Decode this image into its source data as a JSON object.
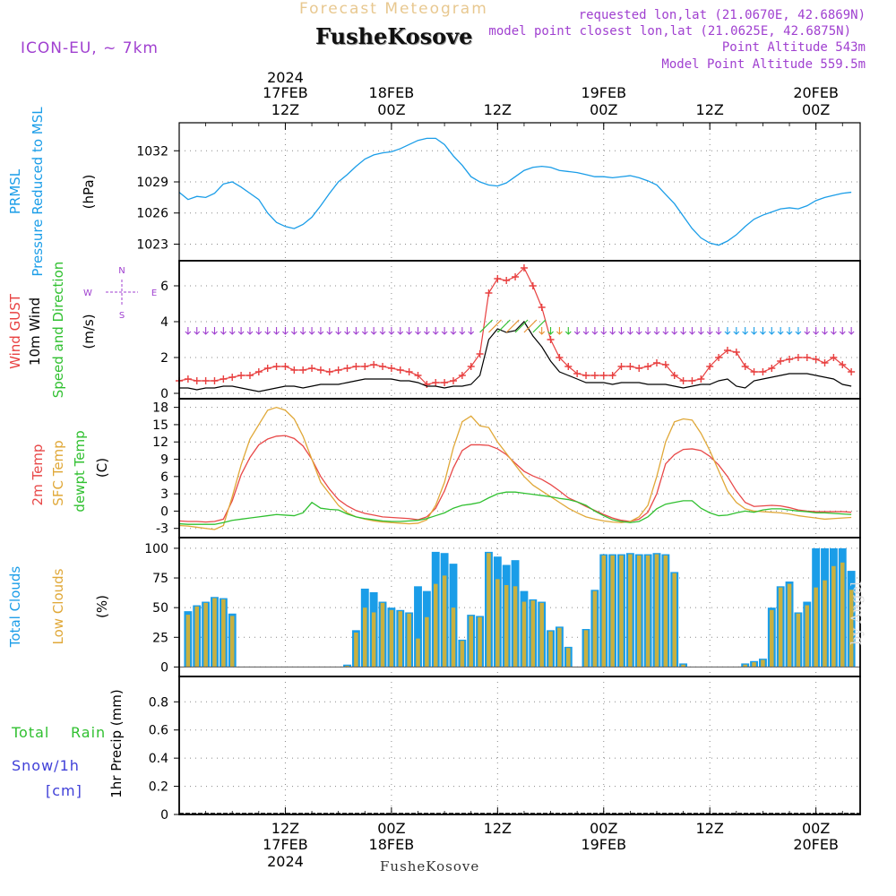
{
  "header": {
    "title": "Forecast Meteogram",
    "place": "FusheKosove",
    "model": "ICON-EU, ~ 7km",
    "requested": "requested lon,lat (21.0670E, 42.6869N)",
    "closest": "model point closest lon,lat (21.0625E, 42.6875N)",
    "point_alt": "Point Altitude 543m",
    "model_alt": "Model Point Altitude 559.5m",
    "footer_place": "FusheKosove",
    "watermark": "by Angel"
  },
  "colors": {
    "pressure": "#1a9de8",
    "gust": "#e84040",
    "wind": "#000000",
    "temp2m": "#e84848",
    "sfc": "#e0a838",
    "dewpt": "#30c030",
    "total_clouds": "#1a9de8",
    "low_clouds": "#c8b040",
    "purple": "#a040d0",
    "rain": "#30c030",
    "snow": "#4040d8"
  },
  "axes": {
    "top_year": "2024",
    "top_ticks": [
      {
        "t": 12,
        "day": "17FEB",
        "hr": "12Z"
      },
      {
        "t": 24,
        "day": "18FEB",
        "hr": "00Z"
      },
      {
        "t": 36,
        "day": "",
        "hr": "12Z"
      },
      {
        "t": 48,
        "day": "19FEB",
        "hr": "00Z"
      },
      {
        "t": 60,
        "day": "",
        "hr": "12Z"
      },
      {
        "t": 72,
        "day": "20FEB",
        "hr": "00Z"
      }
    ],
    "bottom_ticks": [
      {
        "t": 12,
        "hr": "12Z",
        "day": "17FEB",
        "year": "2024"
      },
      {
        "t": 24,
        "hr": "00Z",
        "day": "18FEB",
        "year": ""
      },
      {
        "t": 36,
        "hr": "12Z",
        "day": "",
        "year": ""
      },
      {
        "t": 48,
        "hr": "00Z",
        "day": "19FEB",
        "year": ""
      },
      {
        "t": 60,
        "hr": "12Z",
        "day": "",
        "year": ""
      },
      {
        "t": 72,
        "hr": "00Z",
        "day": "20FEB",
        "year": ""
      }
    ],
    "t_range": [
      0,
      77
    ]
  },
  "panels": {
    "pressure": {
      "label1": "PRMSL",
      "label2": "Pressure Reduced to MSL",
      "unit": "(hPa)",
      "ticks": [
        "1023",
        "1026",
        "1029",
        "1032"
      ]
    },
    "wind": {
      "label_gust": "Wind GUST",
      "label_wind": "10m Wind",
      "label_dir": "Speed and Direction",
      "unit": "(m/s)",
      "ticks": [
        "0",
        "2",
        "4",
        "6"
      ],
      "compass": {
        "n": "N",
        "s": "S",
        "w": "W",
        "e": "E"
      }
    },
    "temp": {
      "label_2m": "2m Temp",
      "label_sfc": "SFC Temp",
      "label_dew": "dewpt Temp",
      "unit": "(C)",
      "ticks": [
        "-3",
        "0",
        "3",
        "6",
        "9",
        "12",
        "15",
        "18"
      ]
    },
    "clouds": {
      "label_total": "Total Clouds",
      "label_low": "Low Clouds",
      "unit": "(%)",
      "ticks": [
        "0",
        "25",
        "50",
        "75",
        "100"
      ]
    },
    "precip": {
      "label_total": "Total",
      "label_rain": "Rain",
      "label_snow": "Snow/1h",
      "label_cm": "[cm]",
      "unit": "1hr Precip (mm)",
      "ticks": [
        "0",
        "0.2",
        "0.4",
        "0.6",
        "0.8"
      ]
    }
  },
  "chart_data": [
    {
      "type": "line",
      "title": "PRMSL Pressure Reduced to MSL",
      "ylabel": "hPa",
      "ylim": [
        1021.4,
        1034.7
      ],
      "x": [
        0,
        1,
        2,
        3,
        4,
        5,
        6,
        7,
        8,
        9,
        10,
        11,
        12,
        13,
        14,
        15,
        16,
        17,
        18,
        19,
        20,
        21,
        22,
        23,
        24,
        25,
        26,
        27,
        28,
        29,
        30,
        31,
        32,
        33,
        34,
        35,
        36,
        37,
        38,
        39,
        40,
        41,
        42,
        43,
        44,
        45,
        46,
        47,
        48,
        49,
        50,
        51,
        52,
        53,
        54,
        55,
        56,
        57,
        58,
        59,
        60,
        61,
        62,
        63,
        64,
        65,
        66,
        67,
        68,
        69,
        70,
        71,
        72,
        73,
        74,
        75,
        76
      ],
      "values": [
        1028.0,
        1027.3,
        1027.6,
        1027.5,
        1027.9,
        1028.8,
        1029.0,
        1028.5,
        1027.9,
        1027.3,
        1026.0,
        1025.1,
        1024.7,
        1024.5,
        1024.9,
        1025.6,
        1026.7,
        1027.9,
        1029.0,
        1029.7,
        1030.5,
        1031.2,
        1031.6,
        1031.8,
        1031.9,
        1032.2,
        1032.6,
        1033.0,
        1033.2,
        1033.2,
        1032.6,
        1031.5,
        1030.6,
        1029.5,
        1029.0,
        1028.7,
        1028.6,
        1028.9,
        1029.5,
        1030.1,
        1030.4,
        1030.5,
        1030.4,
        1030.1,
        1030.0,
        1029.9,
        1029.7,
        1029.5,
        1029.5,
        1029.4,
        1029.5,
        1029.6,
        1029.4,
        1029.1,
        1028.7,
        1027.8,
        1026.9,
        1025.7,
        1024.5,
        1023.6,
        1023.1,
        1022.9,
        1023.3,
        1023.9,
        1024.7,
        1025.4,
        1025.8,
        1026.1,
        1026.4,
        1026.5,
        1026.4,
        1026.7,
        1027.2,
        1027.5,
        1027.7,
        1027.9,
        1028.0
      ]
    },
    {
      "type": "line",
      "title": "Wind GUST / 10m Wind Speed",
      "ylabel": "m/s",
      "ylim": [
        -0.3,
        7.4
      ],
      "x": [
        0,
        1,
        2,
        3,
        4,
        5,
        6,
        7,
        8,
        9,
        10,
        11,
        12,
        13,
        14,
        15,
        16,
        17,
        18,
        19,
        20,
        21,
        22,
        23,
        24,
        25,
        26,
        27,
        28,
        29,
        30,
        31,
        32,
        33,
        34,
        35,
        36,
        37,
        38,
        39,
        40,
        41,
        42,
        43,
        44,
        45,
        46,
        47,
        48,
        49,
        50,
        51,
        52,
        53,
        54,
        55,
        56,
        57,
        58,
        59,
        60,
        61,
        62,
        63,
        64,
        65,
        66,
        67,
        68,
        69,
        70,
        71,
        72,
        73,
        74,
        75,
        76
      ],
      "series": [
        {
          "name": "Wind GUST",
          "values": [
            0.7,
            0.8,
            0.7,
            0.7,
            0.7,
            0.8,
            0.9,
            1.0,
            1.0,
            1.2,
            1.4,
            1.5,
            1.5,
            1.3,
            1.3,
            1.4,
            1.3,
            1.2,
            1.3,
            1.4,
            1.5,
            1.5,
            1.6,
            1.5,
            1.4,
            1.3,
            1.2,
            1.0,
            0.5,
            0.6,
            0.6,
            0.7,
            1.0,
            1.5,
            2.2,
            5.6,
            6.4,
            6.3,
            6.5,
            7.0,
            6.0,
            4.8,
            3.0,
            2.0,
            1.5,
            1.1,
            1.0,
            1.0,
            1.0,
            1.0,
            1.5,
            1.5,
            1.4,
            1.5,
            1.7,
            1.6,
            1.0,
            0.7,
            0.7,
            0.8,
            1.5,
            2.0,
            2.4,
            2.3,
            1.5,
            1.2,
            1.2,
            1.4,
            1.8,
            1.9,
            2.0,
            2.0,
            1.9,
            1.7,
            2.0,
            1.6,
            1.2
          ]
        },
        {
          "name": "10m Wind",
          "values": [
            0.3,
            0.3,
            0.2,
            0.3,
            0.3,
            0.4,
            0.4,
            0.3,
            0.2,
            0.1,
            0.2,
            0.3,
            0.4,
            0.4,
            0.3,
            0.4,
            0.5,
            0.5,
            0.5,
            0.6,
            0.7,
            0.8,
            0.8,
            0.8,
            0.8,
            0.7,
            0.7,
            0.6,
            0.4,
            0.4,
            0.3,
            0.4,
            0.4,
            0.5,
            1.0,
            3.0,
            3.6,
            3.4,
            3.5,
            4.0,
            3.2,
            2.6,
            1.8,
            1.2,
            1.0,
            0.8,
            0.6,
            0.6,
            0.6,
            0.5,
            0.6,
            0.6,
            0.6,
            0.5,
            0.5,
            0.5,
            0.4,
            0.3,
            0.4,
            0.5,
            0.5,
            0.7,
            0.8,
            0.4,
            0.3,
            0.7,
            0.8,
            0.9,
            1.0,
            1.1,
            1.1,
            1.1,
            1.0,
            0.9,
            0.8,
            0.5,
            0.4
          ]
        }
      ]
    },
    {
      "type": "line",
      "title": "2m Temp / SFC Temp / dewpt Temp",
      "ylabel": "C",
      "ylim": [
        -4.6,
        19.5
      ],
      "x": [
        0,
        1,
        2,
        3,
        4,
        5,
        6,
        7,
        8,
        9,
        10,
        11,
        12,
        13,
        14,
        15,
        16,
        17,
        18,
        19,
        20,
        21,
        22,
        23,
        24,
        25,
        26,
        27,
        28,
        29,
        30,
        31,
        32,
        33,
        34,
        35,
        36,
        37,
        38,
        39,
        40,
        41,
        42,
        43,
        44,
        45,
        46,
        47,
        48,
        49,
        50,
        51,
        52,
        53,
        54,
        55,
        56,
        57,
        58,
        59,
        60,
        61,
        62,
        63,
        64,
        65,
        66,
        67,
        68,
        69,
        70,
        71,
        72,
        73,
        74,
        75,
        76
      ],
      "series": [
        {
          "name": "2m Temp",
          "values": [
            -1.7,
            -1.8,
            -1.8,
            -1.9,
            -1.8,
            -1.4,
            1.8,
            6.3,
            9.3,
            11.5,
            12.5,
            13.0,
            13.1,
            12.6,
            11.3,
            9.0,
            6.0,
            3.8,
            2.0,
            0.9,
            0.1,
            -0.4,
            -0.7,
            -1.0,
            -1.1,
            -1.2,
            -1.3,
            -1.5,
            -1.0,
            0.5,
            3.5,
            7.5,
            10.5,
            11.5,
            11.5,
            11.4,
            10.8,
            9.8,
            8.3,
            6.9,
            6.1,
            5.5,
            4.6,
            3.5,
            2.3,
            1.6,
            0.8,
            0.1,
            -0.6,
            -1.2,
            -1.6,
            -1.8,
            -1.4,
            -0.2,
            3.0,
            8.2,
            9.8,
            10.7,
            10.8,
            10.5,
            9.5,
            8.0,
            6.0,
            3.5,
            1.5,
            0.8,
            0.9,
            1.0,
            0.9,
            0.6,
            0.2,
            0.0,
            -0.1,
            -0.1,
            -0.1,
            -0.1,
            -0.2
          ]
        },
        {
          "name": "SFC Temp",
          "values": [
            -2.5,
            -2.6,
            -2.8,
            -3.0,
            -3.2,
            -2.5,
            2.5,
            8.0,
            12.5,
            15.0,
            17.5,
            18.0,
            17.5,
            16.0,
            13.0,
            9.0,
            5.0,
            3.0,
            1.0,
            -0.3,
            -1.0,
            -1.4,
            -1.7,
            -1.9,
            -2.0,
            -2.1,
            -2.2,
            -2.1,
            -1.5,
            1.0,
            5.0,
            11.0,
            15.5,
            16.5,
            14.8,
            14.5,
            12.0,
            10.0,
            8.0,
            6.0,
            4.5,
            3.5,
            2.5,
            1.5,
            0.5,
            -0.3,
            -1.0,
            -1.4,
            -1.7,
            -1.9,
            -2.0,
            -1.8,
            -1.0,
            1.0,
            6.0,
            12.0,
            15.5,
            16.0,
            15.8,
            13.5,
            10.5,
            7.0,
            3.5,
            1.5,
            0.4,
            0.0,
            -0.1,
            -0.2,
            -0.3,
            -0.5,
            -0.8,
            -1.0,
            -1.2,
            -1.4,
            -1.3,
            -1.2,
            -1.1
          ]
        },
        {
          "name": "dewpt Temp",
          "values": [
            -2.2,
            -2.3,
            -2.3,
            -2.3,
            -2.3,
            -2.0,
            -1.6,
            -1.4,
            -1.2,
            -1.0,
            -0.8,
            -0.6,
            -0.7,
            -0.8,
            -0.3,
            1.5,
            0.5,
            0.3,
            0.2,
            -0.5,
            -1.0,
            -1.3,
            -1.5,
            -1.7,
            -1.8,
            -1.8,
            -1.7,
            -1.6,
            -1.3,
            -0.8,
            -0.3,
            0.5,
            1.0,
            1.2,
            1.5,
            2.3,
            3.0,
            3.3,
            3.3,
            3.1,
            2.9,
            2.7,
            2.5,
            2.2,
            2.0,
            1.6,
            1.0,
            0.0,
            -0.8,
            -1.5,
            -1.8,
            -2.0,
            -1.8,
            -1.0,
            0.4,
            1.2,
            1.5,
            1.8,
            1.8,
            0.5,
            -0.3,
            -0.8,
            -0.7,
            -0.3,
            0.0,
            -0.2,
            0.2,
            0.4,
            0.4,
            0.2,
            0.0,
            -0.1,
            -0.3,
            -0.3,
            -0.4,
            -0.5,
            -0.6
          ]
        }
      ]
    },
    {
      "type": "bar",
      "title": "Total Clouds / Low Clouds",
      "ylabel": "%",
      "ylim": [
        -8,
        109
      ],
      "x": [
        0,
        1,
        2,
        3,
        4,
        5,
        6,
        7,
        8,
        9,
        10,
        11,
        12,
        13,
        14,
        15,
        16,
        17,
        18,
        19,
        20,
        21,
        22,
        23,
        24,
        25,
        26,
        27,
        28,
        29,
        30,
        31,
        32,
        33,
        34,
        35,
        36,
        37,
        38,
        39,
        40,
        41,
        42,
        43,
        44,
        45,
        46,
        47,
        48,
        49,
        50,
        51,
        52,
        53,
        54,
        55,
        56,
        57,
        58,
        59,
        60,
        61,
        62,
        63,
        64,
        65,
        66,
        67,
        68,
        69,
        70,
        71,
        72,
        73,
        74,
        75,
        76
      ],
      "series": [
        {
          "name": "Total Clouds",
          "values": [
            0,
            47,
            52,
            55,
            59,
            58,
            45,
            0,
            0,
            0,
            0,
            0,
            0,
            0,
            0,
            0,
            0,
            0,
            0,
            2,
            31,
            66,
            63,
            55,
            50,
            48,
            46,
            68,
            64,
            97,
            96,
            87,
            23,
            44,
            43,
            97,
            93,
            86,
            90,
            64,
            57,
            55,
            31,
            34,
            17,
            0,
            32,
            65,
            95,
            95,
            95,
            96,
            95,
            95,
            96,
            95,
            80,
            3,
            0,
            0,
            0,
            0,
            0,
            0,
            3,
            5,
            7,
            50,
            68,
            72,
            46,
            55,
            100,
            100,
            100,
            100,
            81
          ]
        },
        {
          "name": "Low Clouds",
          "values": [
            0,
            44,
            51,
            54,
            58,
            57,
            43,
            0,
            0,
            0,
            0,
            0,
            0,
            0,
            0,
            0,
            0,
            0,
            0,
            1,
            29,
            50,
            46,
            54,
            48,
            47,
            45,
            24,
            42,
            70,
            77,
            50,
            22,
            43,
            42,
            96,
            74,
            69,
            68,
            55,
            56,
            54,
            30,
            33,
            16,
            0,
            31,
            64,
            94,
            94,
            94,
            95,
            94,
            94,
            95,
            94,
            79,
            2,
            0,
            0,
            0,
            0,
            0,
            0,
            2,
            4,
            6,
            48,
            67,
            70,
            45,
            52,
            67,
            73,
            85,
            88,
            65
          ]
        }
      ]
    },
    {
      "type": "bar",
      "title": "1hr Precip (mm)",
      "ylabel": "mm",
      "ylim": [
        0,
        0.98
      ],
      "x": [
        0,
        76
      ],
      "series": [
        {
          "name": "Total Rain",
          "values": [
            0,
            0
          ]
        },
        {
          "name": "Snow/1h",
          "values": [
            0,
            0
          ]
        }
      ]
    }
  ]
}
